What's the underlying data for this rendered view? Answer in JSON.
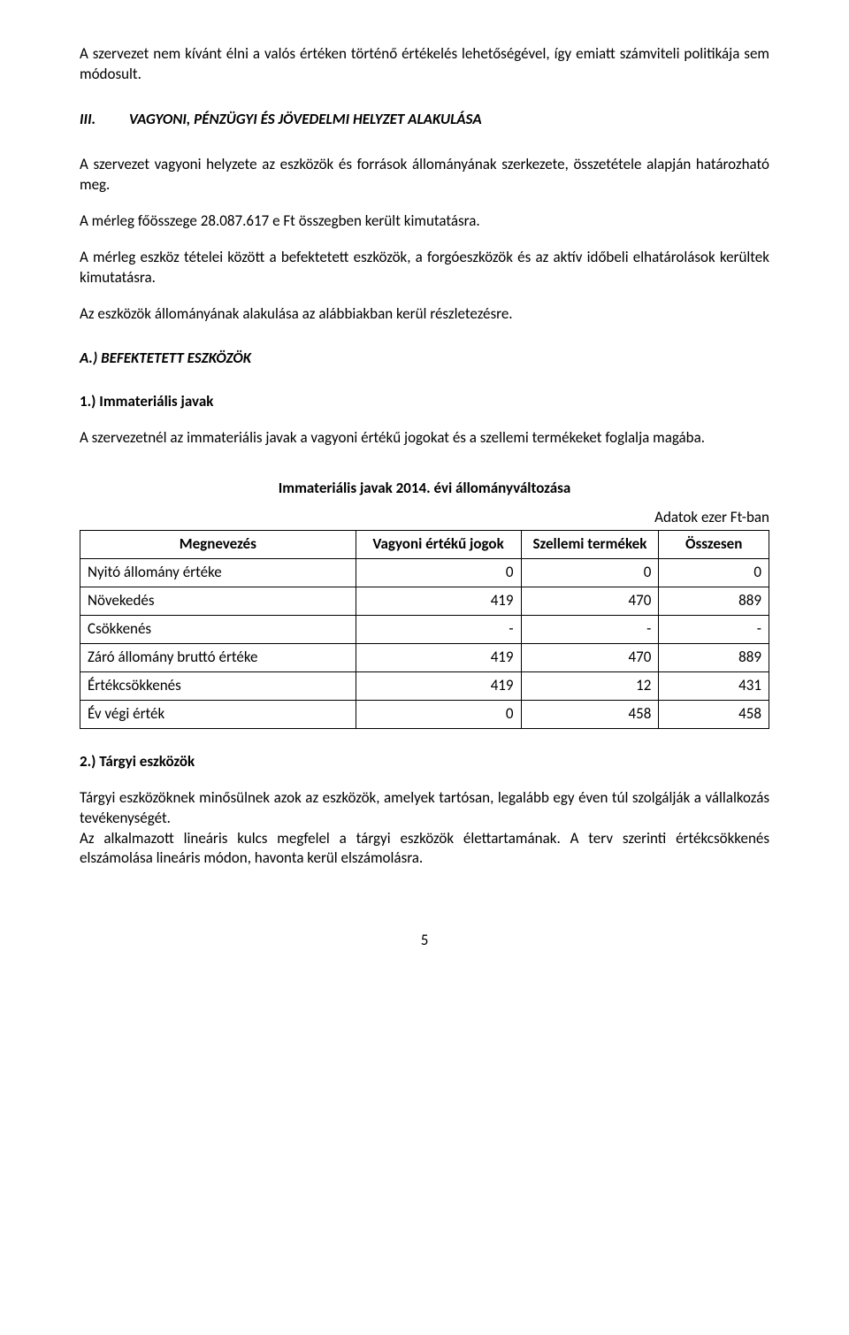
{
  "para1": "A szervezet nem kívánt élni a valós értéken történő értékelés lehetőségével, így emiatt számviteli politikája sem módosult.",
  "section3": {
    "roman": "III.",
    "title": "VAGYONI, PÉNZÜGYI ÉS JÖVEDELMI HELYZET ALAKULÁSA"
  },
  "para2": "A szervezet vagyoni helyzete az eszközök és források állományának szerkezete, összetétele alapján határozható meg.",
  "para3": "A mérleg főösszege 28.087.617 e Ft összegben került kimutatásra.",
  "para4": "A mérleg eszköz tételei között a befektetett eszközök, a forgóeszközök és az aktív időbeli elhatárolások kerültek kimutatásra.",
  "para5": "Az eszközök állományának alakulása az alábbiakban kerül részletezésre.",
  "subA": "A.) BEFEKTETETT ESZKÖZÖK",
  "sub1": "1.) Immateriális javak",
  "para6": "A szervezetnél az immateriális javak a vagyoni értékű jogokat és a szellemi termékeket foglalja magába.",
  "table1": {
    "title": "Immateriális javak 2014. évi állományváltozása",
    "unit": "Adatok ezer Ft-ban",
    "headers": [
      "Megnevezés",
      "Vagyoni értékű jogok",
      "Szellemi termékek",
      "Összesen"
    ],
    "rows": [
      {
        "label": "Nyitó állomány értéke",
        "c1": "0",
        "c2": "0",
        "c3": "0"
      },
      {
        "label": "Növekedés",
        "c1": "419",
        "c2": "470",
        "c3": "889"
      },
      {
        "label": "Csökkenés",
        "c1": "-",
        "c2": "-",
        "c3": "-"
      },
      {
        "label": "Záró állomány bruttó értéke",
        "c1": "419",
        "c2": "470",
        "c3": "889"
      },
      {
        "label": "Értékcsökkenés",
        "c1": "419",
        "c2": "12",
        "c3": "431"
      },
      {
        "label": "Év végi érték",
        "c1": "0",
        "c2": "458",
        "c3": "458"
      }
    ],
    "col_widths": [
      "40%",
      "24%",
      "20%",
      "16%"
    ]
  },
  "sub2": "2.) Tárgyi eszközök",
  "para7": "Tárgyi eszközöknek minősülnek azok az eszközök, amelyek tartósan, legalább egy éven túl szolgálják a vállalkozás tevékenységét.",
  "para8": "Az alkalmazott lineáris kulcs megfelel a tárgyi eszközök élettartamának. A terv szerinti értékcsökkenés elszámolása lineáris módon, havonta kerül elszámolásra.",
  "page_number": "5"
}
